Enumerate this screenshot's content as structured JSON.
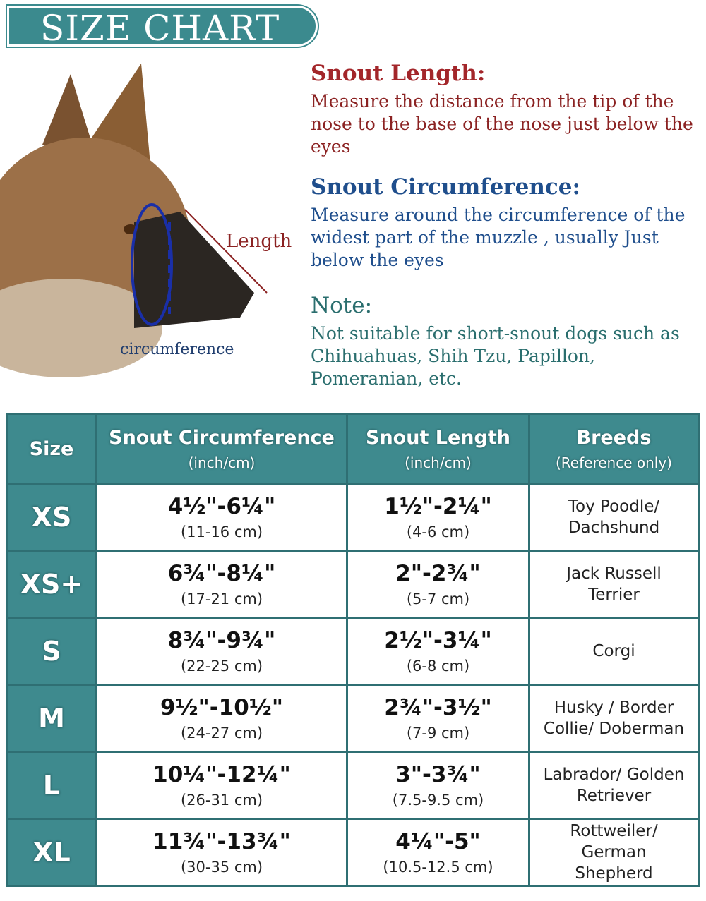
{
  "header": {
    "title": "SIZE CHART"
  },
  "illustration": {
    "length_label": "Length",
    "circumference_label": "circumference"
  },
  "instructions": [
    {
      "heading": "Snout Length:",
      "text": "Measure the distance from the tip of the nose to the base of the nose just below the eyes"
    },
    {
      "heading": "Snout Circumference:",
      "text": "Measure around the circumference of the widest part of the muzzle , usually Just below the eyes"
    },
    {
      "heading": "Note:",
      "text": "Not suitable for short-snout dogs such as Chihuahuas, Shih Tzu, Papillon, Pomeranian, etc."
    }
  ],
  "table": {
    "header": [
      {
        "title": "Size"
      },
      {
        "title": "Snout Circumference",
        "sub": "(inch/cm)"
      },
      {
        "title": "Snout Length",
        "sub": "(inch/cm)"
      },
      {
        "title": "Breeds",
        "sub": "(Reference only)"
      }
    ],
    "rows": [
      {
        "size": "XS",
        "circ": "4½\"-6¼\"",
        "circ_cm": "(11-16 cm)",
        "len": "1½\"-2¼\"",
        "len_cm": "(4-6 cm)",
        "breeds": "Toy Poodle/ Dachshund"
      },
      {
        "size": "XS+",
        "circ": "6¾\"-8¼\"",
        "circ_cm": "(17-21 cm)",
        "len": "2\"-2¾\"",
        "len_cm": "(5-7 cm)",
        "breeds": "Jack Russell Terrier"
      },
      {
        "size": "S",
        "circ": "8¾\"-9¾\"",
        "circ_cm": "(22-25 cm)",
        "len": "2½\"-3¼\"",
        "len_cm": "(6-8 cm)",
        "breeds": "Corgi"
      },
      {
        "size": "M",
        "circ": "9½\"-10½\"",
        "circ_cm": "(24-27 cm)",
        "len": "2¾\"-3½\"",
        "len_cm": "(7-9 cm)",
        "breeds": "Husky / Border Collie/ Doberman"
      },
      {
        "size": "L",
        "circ": "10¼\"-12¼\"",
        "circ_cm": "(26-31 cm)",
        "len": "3\"-3¾\"",
        "len_cm": "(7.5-9.5 cm)",
        "breeds": "Labrador/ Golden Retriever"
      },
      {
        "size": "XL",
        "circ": "11¾\"-13¾\"",
        "circ_cm": "(30-35 cm)",
        "len": "4¼\"-5\"",
        "len_cm": "(10.5-12.5 cm)",
        "breeds": "Rottweiler/ German Shepherd"
      }
    ]
  }
}
